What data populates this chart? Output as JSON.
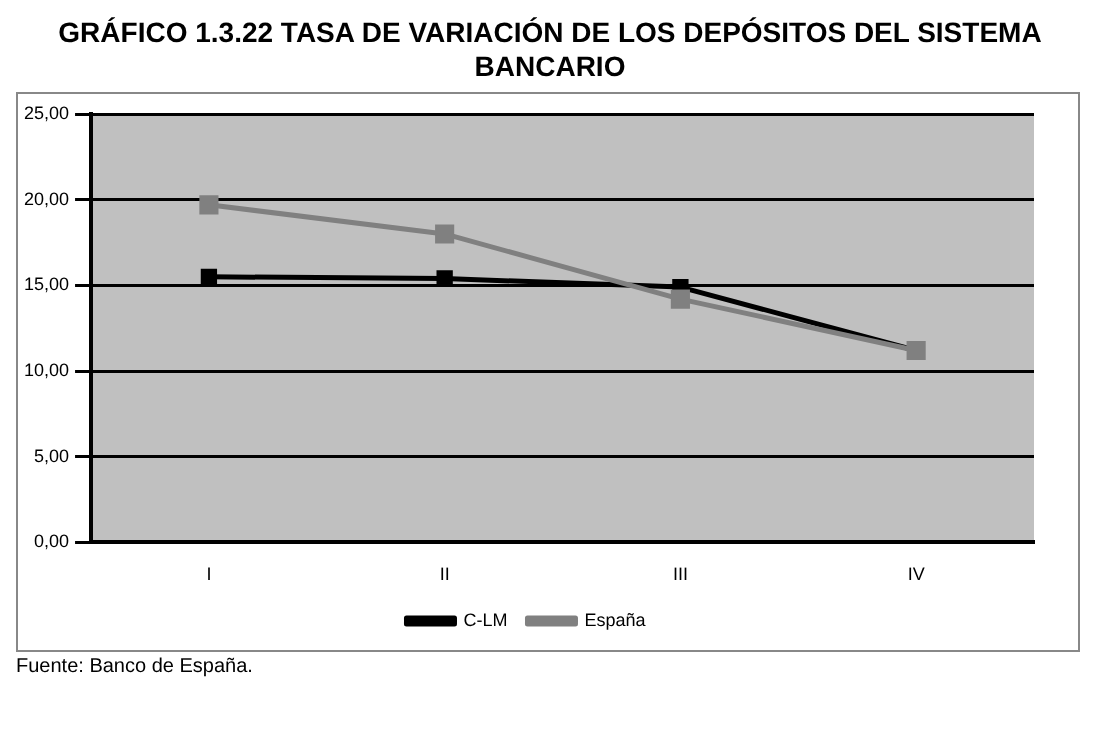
{
  "chart_data": {
    "type": "line",
    "title": "GRÁFICO 1.3.22 TASA DE VARIACIÓN DE LOS DEPÓSITOS DEL SISTEMA BANCARIO",
    "categories": [
      "I",
      "II",
      "III",
      "IV"
    ],
    "series": [
      {
        "name": "C-LM",
        "color": "#000000",
        "values": [
          15.5,
          15.4,
          14.9,
          11.2
        ]
      },
      {
        "name": "España",
        "color": "#808080",
        "values": [
          19.7,
          18.0,
          14.2,
          11.2
        ]
      }
    ],
    "ylim": [
      0,
      25
    ],
    "yticks": [
      {
        "value": 0,
        "label": "0,00"
      },
      {
        "value": 5,
        "label": "5,00"
      },
      {
        "value": 10,
        "label": "10,00"
      },
      {
        "value": 15,
        "label": "15,00"
      },
      {
        "value": 20,
        "label": "20,00"
      },
      {
        "value": 25,
        "label": "25,00"
      }
    ],
    "grid": "y",
    "legend": "bottom",
    "marker": "square",
    "annotations": [
      "Fuente: Banco de España."
    ]
  }
}
